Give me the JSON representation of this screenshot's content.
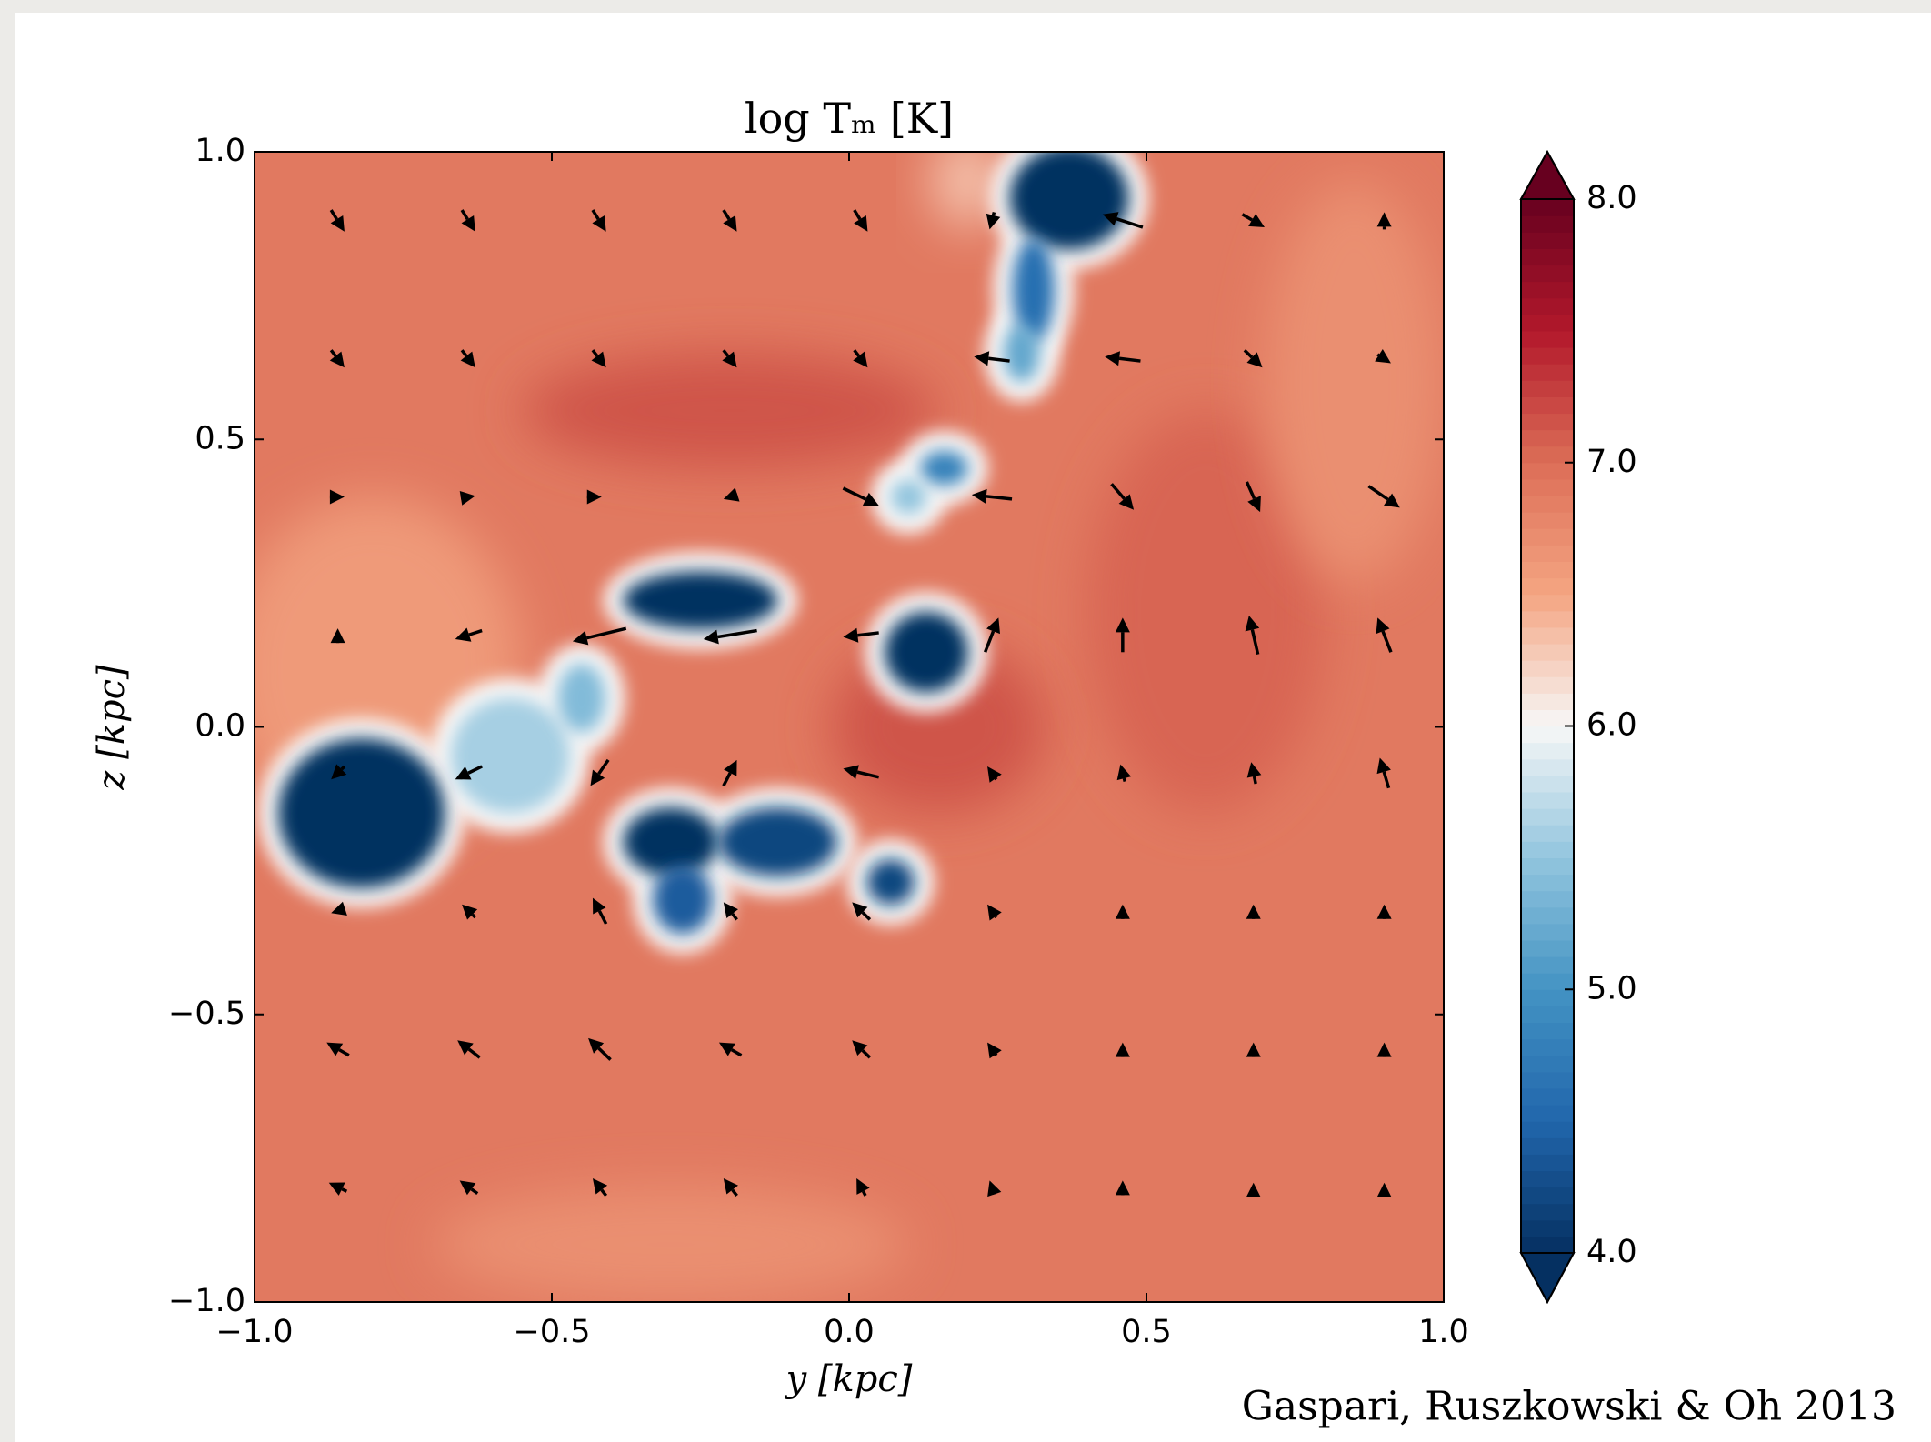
{
  "chart_data": {
    "type": "quiver",
    "title": "log Tₘ [K]",
    "xlabel": "y [kpc]",
    "ylabel": "z [kpc]",
    "credit": "Gaspari, Ruszkowski & Oh 2013",
    "xlim": [
      -1,
      1
    ],
    "ylim": [
      -1,
      1
    ],
    "xticks": [
      {
        "value": -1,
        "label": "−1.0"
      },
      {
        "value": -0.5,
        "label": "−0.5"
      },
      {
        "value": 0,
        "label": "0.0"
      },
      {
        "value": 0.5,
        "label": "0.5"
      },
      {
        "value": 1,
        "label": "1.0"
      }
    ],
    "yticks": [
      {
        "value": -1,
        "label": "−1.0"
      },
      {
        "value": -0.5,
        "label": "−0.5"
      },
      {
        "value": 0,
        "label": "0.0"
      },
      {
        "value": 0.5,
        "label": "0.5"
      },
      {
        "value": 1,
        "label": "1.0"
      }
    ],
    "colorbar": {
      "clim": [
        4,
        8
      ],
      "ticks": [
        {
          "value": 4,
          "label": "4.0"
        },
        {
          "value": 5,
          "label": "5.0"
        },
        {
          "value": 6,
          "label": "6.0"
        },
        {
          "value": 7,
          "label": "7.0"
        },
        {
          "value": 8,
          "label": "8.0"
        }
      ],
      "colors": [
        "#053061",
        "#2166ac",
        "#4393c3",
        "#92c5de",
        "#f7f7f7",
        "#f4a582",
        "#dc6e57",
        "#b2182b",
        "#67001f"
      ]
    },
    "field": {
      "background": 6.9,
      "regions": [
        {
          "y": -0.8,
          "z": 0.1,
          "ry": 0.25,
          "rz": 0.3,
          "value": 6.6
        },
        {
          "y": -0.2,
          "z": 0.55,
          "ry": 0.35,
          "rz": 0.1,
          "value": 7.15
        },
        {
          "y": 0.15,
          "z": 0.0,
          "ry": 0.18,
          "rz": 0.15,
          "value": 7.15
        },
        {
          "y": 0.6,
          "z": 0.2,
          "ry": 0.2,
          "rz": 0.35,
          "value": 7.05
        },
        {
          "y": 0.85,
          "z": 0.6,
          "ry": 0.15,
          "rz": 0.35,
          "value": 6.7
        },
        {
          "y": -0.3,
          "z": -0.9,
          "ry": 0.4,
          "rz": 0.1,
          "value": 6.7
        },
        {
          "y": 0.2,
          "z": 0.95,
          "ry": 0.06,
          "rz": 0.08,
          "value": 6.3
        }
      ],
      "clouds": [
        {
          "y": 0.37,
          "z": 0.92,
          "ry": 0.1,
          "rz": 0.09,
          "value": 4.0
        },
        {
          "y": 0.31,
          "z": 0.76,
          "ry": 0.035,
          "rz": 0.09,
          "value": 4.6
        },
        {
          "y": 0.29,
          "z": 0.65,
          "ry": 0.03,
          "rz": 0.05,
          "value": 5.2
        },
        {
          "y": 0.16,
          "z": 0.45,
          "ry": 0.04,
          "rz": 0.03,
          "value": 4.8
        },
        {
          "y": 0.1,
          "z": 0.4,
          "ry": 0.03,
          "rz": 0.03,
          "value": 5.5
        },
        {
          "y": -0.25,
          "z": 0.22,
          "ry": 0.13,
          "rz": 0.05,
          "value": 4.0
        },
        {
          "y": 0.13,
          "z": 0.13,
          "ry": 0.07,
          "rz": 0.07,
          "value": 4.0
        },
        {
          "y": -0.82,
          "z": -0.15,
          "ry": 0.14,
          "rz": 0.13,
          "value": 4.0
        },
        {
          "y": -0.57,
          "z": -0.05,
          "ry": 0.1,
          "rz": 0.1,
          "value": 5.6
        },
        {
          "y": -0.45,
          "z": 0.05,
          "ry": 0.04,
          "rz": 0.06,
          "value": 5.4
        },
        {
          "y": -0.3,
          "z": -0.2,
          "ry": 0.08,
          "rz": 0.06,
          "value": 4.0
        },
        {
          "y": -0.12,
          "z": -0.2,
          "ry": 0.1,
          "rz": 0.06,
          "value": 4.2
        },
        {
          "y": -0.28,
          "z": -0.3,
          "ry": 0.05,
          "rz": 0.06,
          "value": 4.4
        },
        {
          "y": 0.07,
          "z": -0.27,
          "ry": 0.04,
          "rz": 0.04,
          "value": 4.2
        }
      ]
    },
    "quiver": {
      "color": "#000000",
      "x": [
        -0.86,
        -0.64,
        -0.42,
        -0.2,
        0.02,
        0.24,
        0.46,
        0.68,
        0.9
      ],
      "z": [
        0.88,
        0.64,
        0.4,
        0.16,
        -0.08,
        -0.32,
        -0.56,
        -0.8
      ],
      "u": [
        [
          0.3,
          0.3,
          0.3,
          0.3,
          0.3,
          -0.1,
          -0.9,
          0.5,
          0.0
        ],
        [
          0.3,
          0.3,
          0.3,
          0.3,
          0.3,
          -0.8,
          -0.8,
          0.4,
          0.3
        ],
        [
          0.3,
          0.3,
          0.1,
          -0.3,
          0.8,
          -0.9,
          0.5,
          0.3,
          0.7
        ],
        [
          0.0,
          -0.6,
          -1.2,
          -1.2,
          -0.8,
          0.3,
          0.0,
          -0.2,
          -0.3
        ],
        [
          -0.3,
          -0.6,
          -0.4,
          0.3,
          -0.8,
          -0.2,
          -0.1,
          -0.1,
          -0.2
        ],
        [
          -0.3,
          -0.3,
          -0.3,
          -0.3,
          -0.4,
          -0.2,
          0.0,
          0.0,
          0.0
        ],
        [
          -0.5,
          -0.5,
          -0.5,
          -0.5,
          -0.4,
          -0.2,
          0.0,
          0.0,
          0.0
        ],
        [
          -0.4,
          -0.4,
          -0.3,
          -0.3,
          -0.2,
          -0.1,
          0.0,
          0.0,
          0.0
        ]
      ],
      "v": [
        [
          -0.5,
          -0.5,
          -0.5,
          -0.5,
          -0.5,
          -0.4,
          0.3,
          -0.3,
          0.4
        ],
        [
          -0.4,
          -0.4,
          -0.4,
          -0.4,
          -0.4,
          0.1,
          0.1,
          -0.4,
          -0.2
        ],
        [
          0.0,
          0.05,
          0.0,
          -0.1,
          -0.4,
          0.1,
          -0.6,
          -0.7,
          -0.5
        ],
        [
          0.3,
          -0.2,
          -0.3,
          -0.2,
          -0.1,
          0.8,
          0.8,
          0.9,
          0.8
        ],
        [
          -0.3,
          -0.3,
          -0.6,
          0.6,
          0.2,
          0.3,
          0.4,
          0.5,
          0.7
        ],
        [
          -0.1,
          0.3,
          0.6,
          0.4,
          0.4,
          0.3,
          0.3,
          0.3,
          0.3
        ],
        [
          0.3,
          0.4,
          0.5,
          0.3,
          0.4,
          0.3,
          0.3,
          0.3,
          0.3
        ],
        [
          0.2,
          0.3,
          0.4,
          0.4,
          0.4,
          0.3,
          0.3,
          0.2,
          0.2
        ]
      ]
    }
  }
}
